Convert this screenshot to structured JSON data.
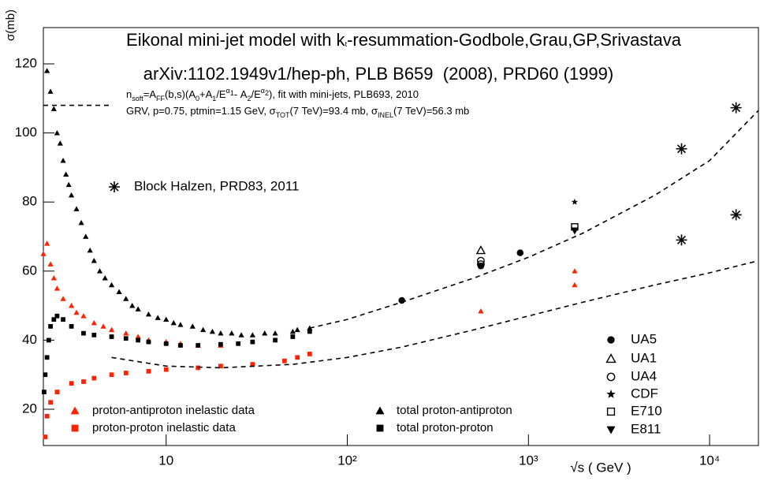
{
  "chart_data": {
    "type": "scatter",
    "title": [
      "Eikonal mini-jet model with k",
      "t",
      "-resummation-Godbole,Grau,GP,Srivastava"
    ],
    "subtitle": "arXiv:1102.1949v1/hep-ph, PLB B659  (2008), PRD60 (1999)",
    "annotations": [
      [
        "n",
        "soft",
        "=A",
        "FF",
        "(b,s)(A",
        "0",
        "+A",
        "1",
        "/E",
        "α",
        "1",
        "- A",
        "2",
        "/E",
        "α",
        "2",
        "), fit with mini-jets, PLB693, 2010"
      ],
      [
        "GRV, p=0.75, ptmin=1.15 GeV, σ",
        "TOT",
        "(7 TeV)=93.4 mb, σ",
        "INEL",
        "(7 TeV)=56.3 mb"
      ]
    ],
    "x_label": "√s ( GeV )",
    "y_label": "σ(mb)",
    "xlog": true,
    "xlim": [
      2.1,
      18600
    ],
    "ylim": [
      9.5,
      130.5
    ],
    "xticks": [
      10,
      {
        "value": 100,
        "label": "10²"
      },
      {
        "value": 1000,
        "label": "10³"
      },
      {
        "value": 10000,
        "label": "10⁴"
      }
    ],
    "yticks": [
      20,
      40,
      60,
      80,
      100,
      120
    ],
    "series": [
      {
        "name": "proton-antiproton inelastic data",
        "color": "#ff2200",
        "marker": "triangle",
        "x": [
          2.1,
          2.2,
          2.3,
          2.4,
          2.5,
          2.7,
          3.0,
          3.2,
          3.5,
          4.0,
          4.5,
          5.0,
          6.0,
          7.0,
          8.0,
          10,
          12,
          15,
          20,
          546,
          1800,
          1800
        ],
        "values": [
          65,
          68,
          62,
          58,
          55,
          52,
          50,
          48,
          47,
          45,
          44,
          43,
          42,
          41,
          40,
          39.5,
          39,
          38.5,
          38.5,
          48.4,
          60,
          56
        ]
      },
      {
        "name": "proton-proton inelastic data",
        "color": "#ff2200",
        "marker": "square",
        "x": [
          2.15,
          2.2,
          2.3,
          2.5,
          3.0,
          3.5,
          4.0,
          5.0,
          6.0,
          8.0,
          10,
          15,
          20,
          30,
          45,
          53,
          62
        ],
        "values": [
          12,
          18,
          22,
          25,
          27.5,
          28,
          29,
          30,
          30.5,
          31,
          31.5,
          32,
          32.5,
          33,
          34,
          35,
          36
        ]
      },
      {
        "name": "total proton-antiproton",
        "color": "#000000",
        "marker": "triangle",
        "x": [
          2.2,
          2.3,
          2.4,
          2.5,
          2.6,
          2.7,
          2.8,
          2.9,
          3.0,
          3.2,
          3.4,
          3.6,
          3.8,
          4.0,
          4.3,
          4.6,
          5.0,
          5.5,
          6,
          6.5,
          7,
          8,
          9,
          10,
          11,
          12,
          14,
          16,
          18,
          20,
          23,
          26,
          30,
          35,
          40,
          50,
          53,
          62
        ],
        "values": [
          118,
          112,
          107,
          100,
          97,
          92,
          88,
          85,
          82,
          78,
          74,
          70,
          66,
          63,
          60,
          58,
          56,
          54,
          52,
          50,
          49,
          47.5,
          46.5,
          46,
          45,
          44.5,
          44,
          43,
          42.5,
          42,
          42,
          41.5,
          41.5,
          42,
          42,
          42.5,
          43,
          43.5
        ]
      },
      {
        "name": "total proton-proton",
        "color": "#000000",
        "marker": "square",
        "x": [
          2.12,
          2.15,
          2.2,
          2.25,
          2.3,
          2.4,
          2.5,
          2.7,
          3.0,
          3.5,
          4.0,
          5.0,
          6.0,
          7.0,
          8.0,
          10,
          12,
          15,
          20,
          25,
          30,
          40,
          50,
          62
        ],
        "values": [
          25,
          30,
          35,
          40,
          44,
          46,
          47,
          46,
          44,
          42,
          41.5,
          41,
          40.5,
          40,
          39.5,
          39,
          38.5,
          38.5,
          38.8,
          39,
          39.5,
          40,
          41,
          42.5
        ]
      },
      {
        "name": "UA5",
        "color": "#000000",
        "marker": "circle",
        "x": [
          200,
          546,
          900
        ],
        "values": [
          51.5,
          61.5,
          65.3
        ]
      },
      {
        "name": "UA1",
        "color": "#000000",
        "marker": "open-triangle",
        "x": [
          546
        ],
        "values": [
          66
        ]
      },
      {
        "name": "UA4",
        "color": "#000000",
        "marker": "open-circle",
        "x": [
          546,
          546
        ],
        "values": [
          63,
          62
        ]
      },
      {
        "name": "CDF",
        "color": "#000000",
        "marker": "star",
        "x": [
          546,
          1800
        ],
        "values": [
          61.3,
          80
        ]
      },
      {
        "name": "E710",
        "color": "#000000",
        "marker": "open-square",
        "x": [
          1800
        ],
        "values": [
          72.8
        ]
      },
      {
        "name": "E811",
        "color": "#000000",
        "marker": "down-triangle",
        "x": [
          1800
        ],
        "values": [
          71.7
        ]
      },
      {
        "name": "Block Halzen, PRD83, 2011",
        "color": "#000000",
        "marker": "asterisk",
        "x": [
          7000,
          7000,
          14000,
          14000
        ],
        "values": [
          69,
          95.4,
          107.3,
          76.3
        ]
      },
      {
        "color": "#000000",
        "style": "dashed",
        "x": [
          62,
          100,
          200,
          500,
          1000,
          2000,
          5000,
          10000,
          18600
        ],
        "values": [
          43.5,
          46,
          51,
          58,
          64,
          71,
          82,
          92,
          106.5
        ]
      },
      {
        "color": "#000000",
        "style": "dashed",
        "x": [
          5,
          10,
          20,
          50,
          100,
          200,
          500,
          1000,
          2000,
          5000,
          10000,
          18600
        ],
        "values": [
          35,
          32.5,
          32,
          33,
          35,
          38,
          43,
          47,
          51,
          56,
          59.5,
          63
        ]
      },
      {
        "color": "#000000",
        "style": "dashed",
        "x": [
          2.1,
          5
        ],
        "values": [
          108,
          108
        ]
      }
    ]
  }
}
